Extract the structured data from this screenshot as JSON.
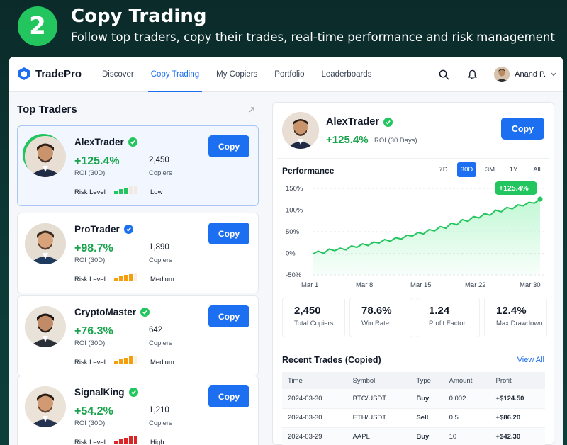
{
  "banner": {
    "step": "2",
    "title": "Copy Trading",
    "subtitle": "Follow top traders, copy their trades, real-time performance and risk management"
  },
  "app": {
    "brand": "TradePro",
    "nav": [
      "Discover",
      "Copy Trading",
      "My Copiers",
      "Portfolio",
      "Leaderboards"
    ],
    "active_nav": "Copy Trading",
    "user_name": "Anand P."
  },
  "left": {
    "title": "Top Traders",
    "copy_label": "Copy",
    "roi_label": "ROI (30D)",
    "copiers_label": "Copiers",
    "risk_label": "Risk Level",
    "traders": [
      {
        "name": "AlexTrader",
        "roi": "+125.4%",
        "copiers": "2,450",
        "risk": "Low",
        "risk_level": 3,
        "risk_color": "#22c55e",
        "verified_color": "#22c55e"
      },
      {
        "name": "ProTrader",
        "roi": "+98.7%",
        "copiers": "1,890",
        "risk": "Medium",
        "risk_level": 4,
        "risk_color": "#f59e0b",
        "verified_color": "#1d6ff2"
      },
      {
        "name": "CryptoMaster",
        "roi": "+76.3%",
        "copiers": "642",
        "risk": "Medium",
        "risk_level": 4,
        "risk_color": "#f59e0b",
        "verified_color": "#22c55e"
      },
      {
        "name": "SignalKing",
        "roi": "+54.2%",
        "copiers": "1,210",
        "risk": "High",
        "risk_level": 5,
        "risk_color": "#dc2626",
        "verified_color": "#22c55e"
      }
    ]
  },
  "detail": {
    "name": "AlexTrader",
    "roi": "+125.4%",
    "roi_label": "ROI (30 Days)",
    "copy_label": "Copy",
    "performance_title": "Performance",
    "periods": [
      "7D",
      "30D",
      "3M",
      "1Y",
      "All"
    ],
    "active_period": "30D",
    "stats": [
      {
        "value": "2,450",
        "label": "Total Copiers"
      },
      {
        "value": "78.6%",
        "label": "Win Rate"
      },
      {
        "value": "1.24",
        "label": "Profit Factor"
      },
      {
        "value": "12.4%",
        "label": "Max Drawdown"
      }
    ],
    "trades_title": "Recent Trades (Copied)",
    "view_all": "View All",
    "trade_columns": [
      "Time",
      "Symbol",
      "Type",
      "Amount",
      "Profit"
    ],
    "trades": [
      [
        "2024-03-30",
        "BTC/USDT",
        "Buy",
        "0.002",
        "+$124.50"
      ],
      [
        "2024-03-30",
        "ETH/USDT",
        "Sell",
        "0.5",
        "+$86.20"
      ],
      [
        "2024-03-29",
        "AAPL",
        "Buy",
        "10",
        "+$42.30"
      ]
    ]
  },
  "chart_data": {
    "type": "area",
    "title": "Performance",
    "x_ticks": [
      "Mar 1",
      "Mar 8",
      "Mar 15",
      "Mar 22",
      "Mar 30"
    ],
    "y_ticks": [
      "150%",
      "100%",
      "50%",
      "0%",
      "-50%"
    ],
    "ylim": [
      -50,
      150
    ],
    "end_label": "+125.4%",
    "series": [
      {
        "values": [
          -2,
          5,
          0,
          10,
          6,
          12,
          8,
          17,
          14,
          22,
          18,
          26,
          24,
          32,
          28,
          36,
          33,
          42,
          40,
          48,
          45,
          55,
          52,
          62,
          58,
          70,
          66,
          78,
          74,
          85,
          82,
          92,
          88,
          100,
          96,
          106,
          103,
          112,
          110,
          118,
          116,
          125.4
        ]
      }
    ],
    "colors": {
      "line": "#22c55e",
      "fill": "#bbf7d0"
    }
  }
}
